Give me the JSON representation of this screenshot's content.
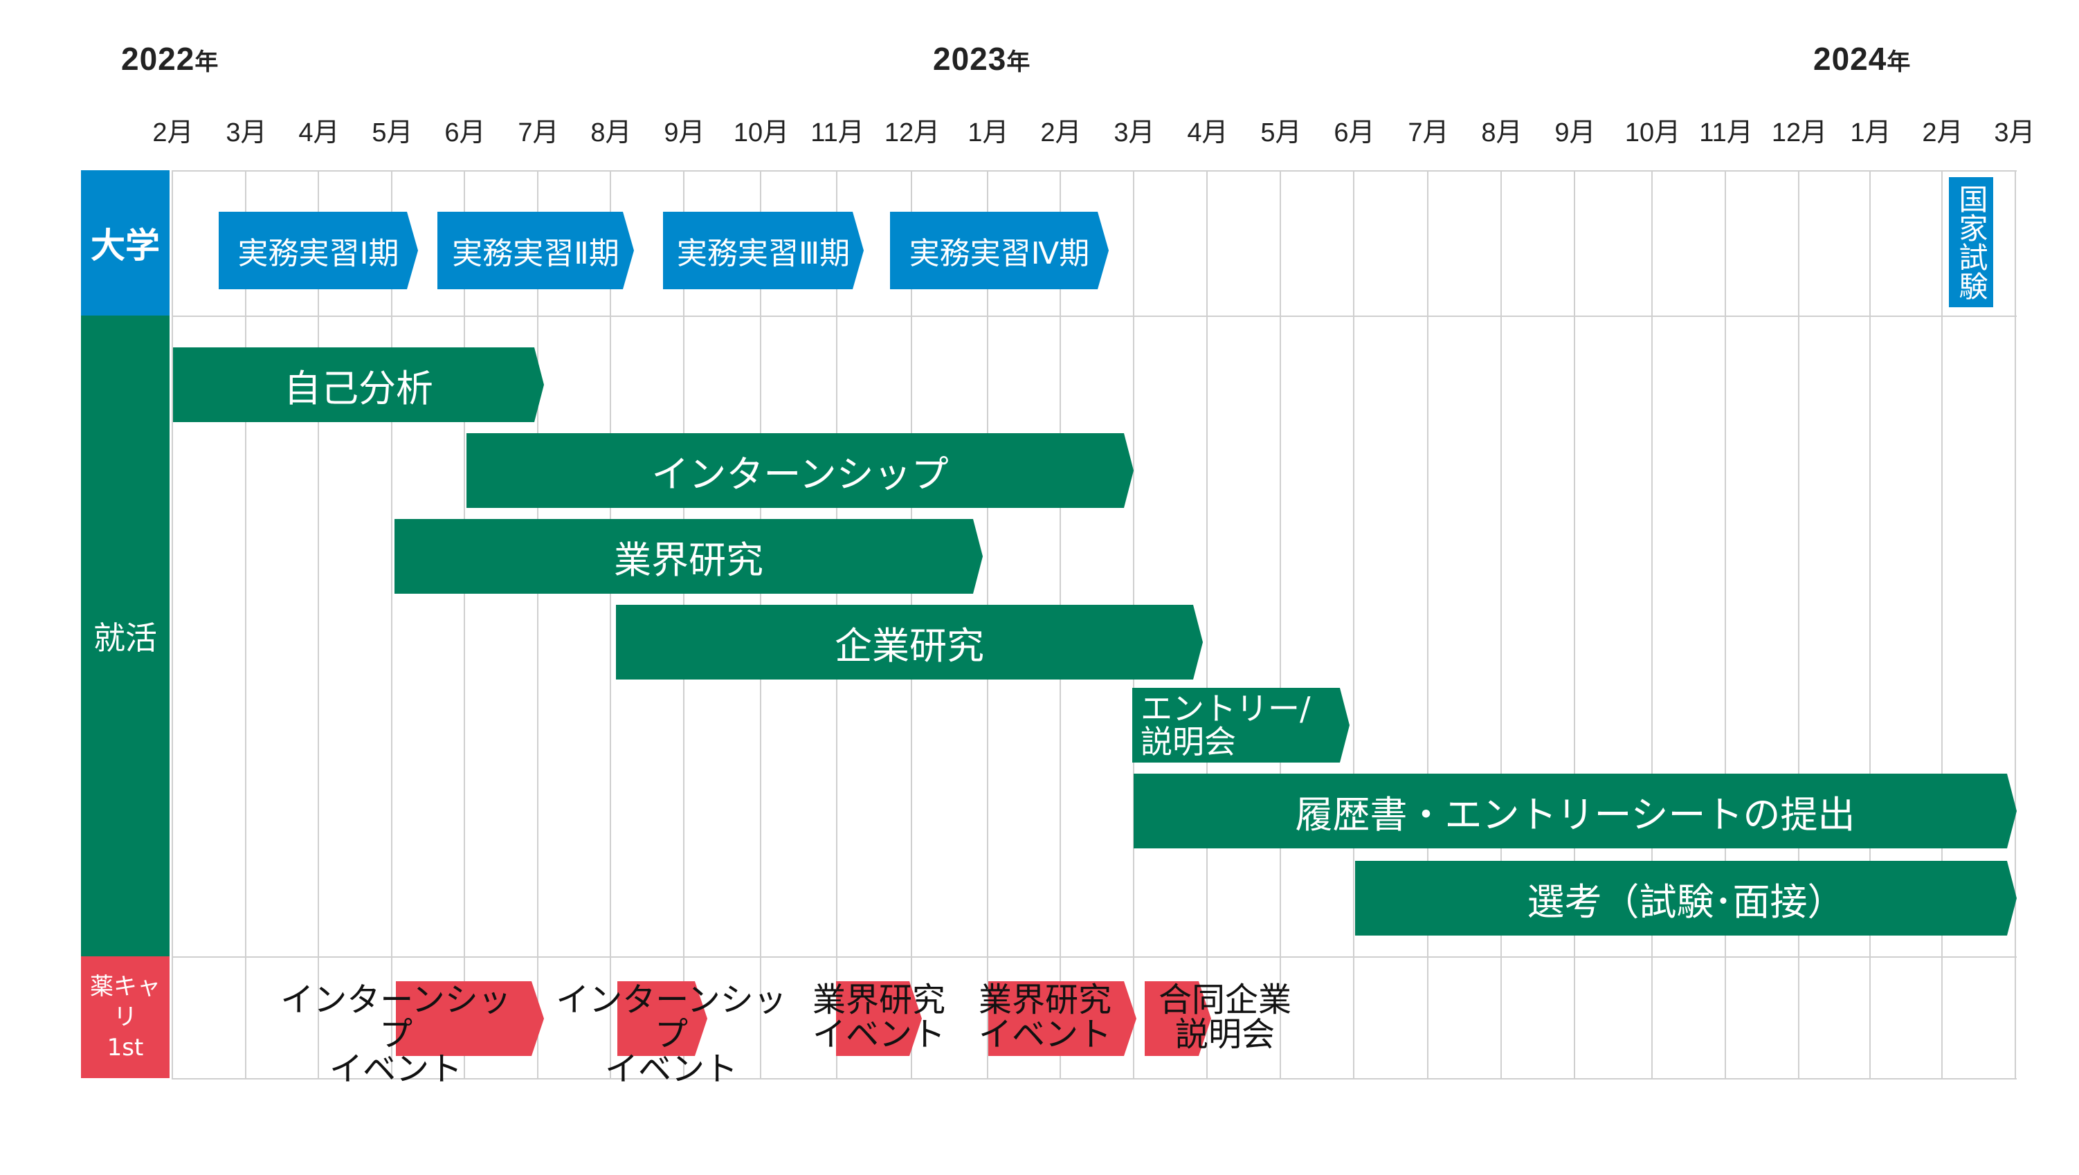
{
  "years": [
    {
      "num": "2022",
      "suffix": "年"
    },
    {
      "num": "2023",
      "suffix": "年"
    },
    {
      "num": "2024",
      "suffix": "年"
    }
  ],
  "months": [
    "2月",
    "3月",
    "4月",
    "5月",
    "6月",
    "7月",
    "8月",
    "9月",
    "10月",
    "11月",
    "12月",
    "1月",
    "2月",
    "3月",
    "4月",
    "5月",
    "6月",
    "7月",
    "8月",
    "9月",
    "10月",
    "11月",
    "12月",
    "1月",
    "2月",
    "3月"
  ],
  "rows": {
    "university": "大学",
    "job_hunting": "就活",
    "yakucari": "薬キャリ\n1st"
  },
  "university_bars": [
    "実務実習Ⅰ期",
    "実務実習Ⅱ期",
    "実務実習Ⅲ期",
    "実務実習Ⅳ期"
  ],
  "national_exam": "国家試験",
  "job_bars": [
    "自己分析",
    "インターンシップ",
    "業界研究",
    "企業研究",
    "エントリー/\n説明会",
    "履歴書・エントリーシートの提出",
    "選考（試験･面接）"
  ],
  "events": [
    "インターンシップ\nイベント",
    "インターンシップ\nイベント",
    "業界研究\nイベント",
    "業界研究\nイベント",
    "合同企業\n説明会"
  ],
  "colors": {
    "university": "#0088cc",
    "job": "#007f5c",
    "yakucari": "#e84452",
    "grid": "#cfcfcf"
  }
}
